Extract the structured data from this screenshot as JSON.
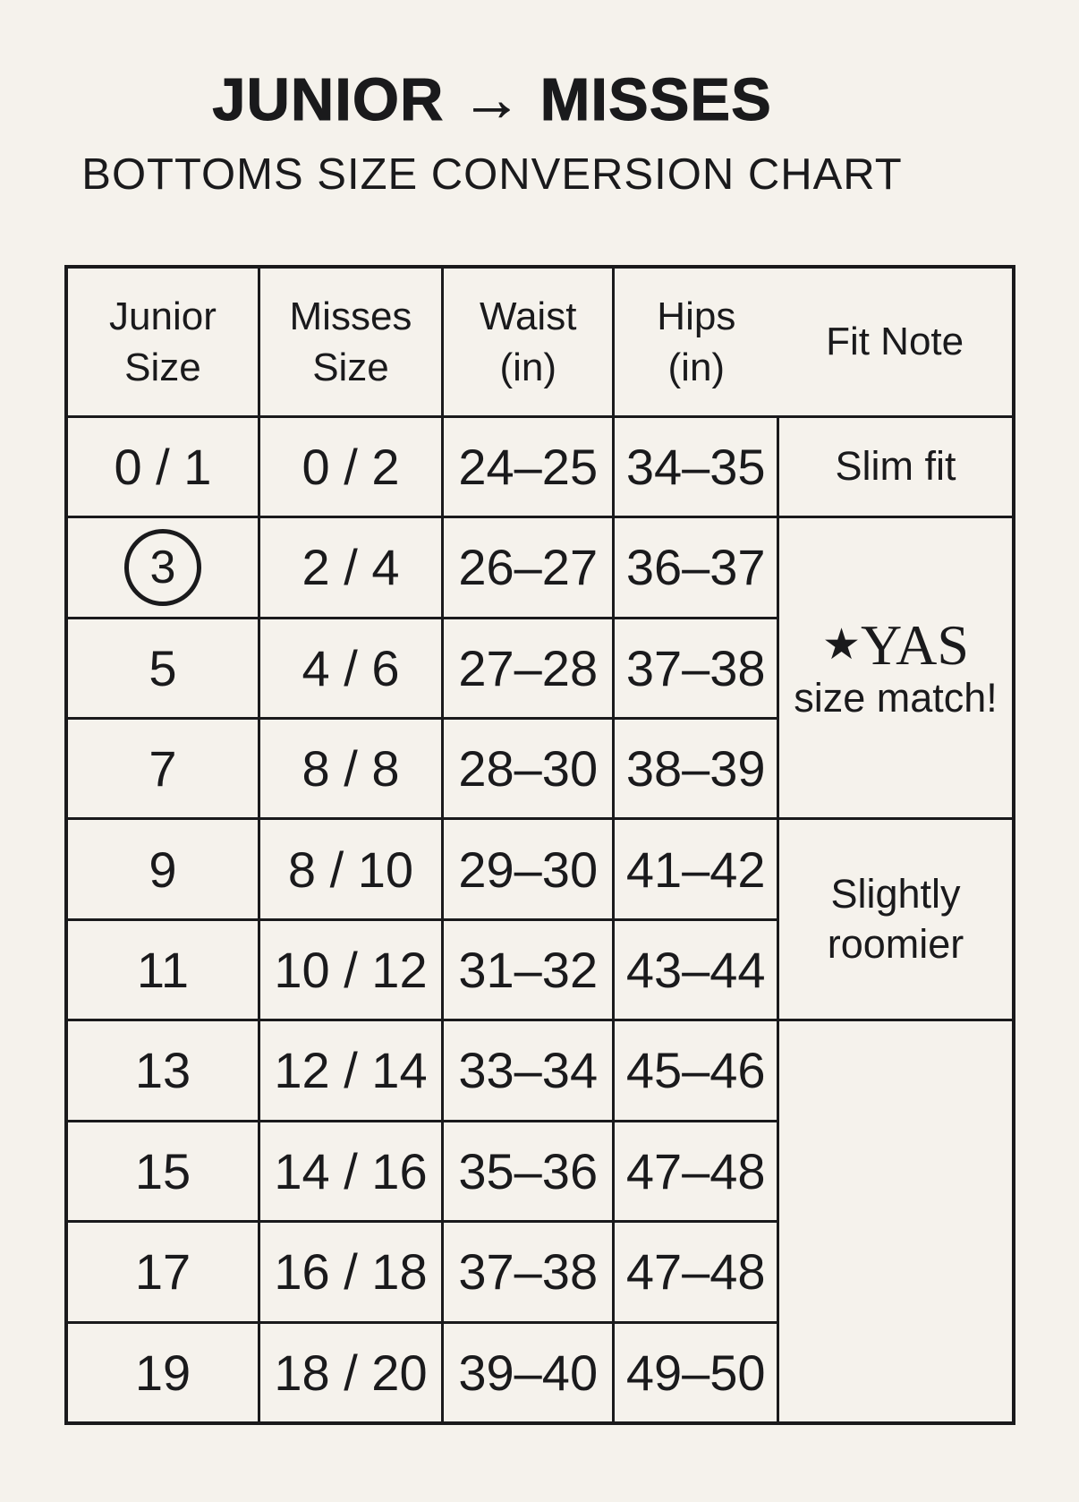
{
  "page": {
    "background_color": "#f5f2ec",
    "line_color": "#1a1a1c"
  },
  "header": {
    "title": "JUNIOR → MISSES",
    "subtitle": "BOTTOMS SIZE CONVERSION CHART"
  },
  "display": {
    "headers": {
      "junior": [
        "Junior",
        "Size"
      ],
      "misses": [
        "Misses",
        "Size"
      ],
      "waist": [
        "Waist",
        "(in)"
      ],
      "hips": [
        "Hips",
        "(in)"
      ],
      "fit": "Fit Note"
    },
    "fit_notes": {
      "slim": "Slim fit",
      "yas_star": "★",
      "yas_brand": "YAS",
      "yas_text": "size match!",
      "roomier": "Slightly roomier",
      "empty": ""
    },
    "annotations": [
      "Junior size 3 is circled"
    ]
  },
  "chart_data": {
    "type": "table",
    "title": "JUNIOR → MISSES",
    "subtitle": "BOTTOMS SIZE CONVERSION CHART",
    "columns": [
      "Junior Size",
      "Misses Size",
      "Waist (in)",
      "Hips (in)",
      "Fit Note"
    ],
    "rows": [
      [
        "0 / 1",
        "0 / 2",
        "24–25",
        "34–35",
        "Slim fit"
      ],
      [
        "3",
        "2 / 4",
        "26–27",
        "36–37",
        "★YAS size match!"
      ],
      [
        "5",
        "4 / 6",
        "27–28",
        "37–38",
        "★YAS size match!"
      ],
      [
        "7",
        "8 / 8",
        "28–30",
        "38–39",
        "★YAS size match!"
      ],
      [
        "9",
        "8 / 10",
        "29–30",
        "41–42",
        "Slightly roomier"
      ],
      [
        "11",
        "10 / 12",
        "31–32",
        "43–44",
        "Slightly roomier"
      ],
      [
        "13",
        "12 / 14",
        "33–34",
        "45–46",
        ""
      ],
      [
        "15",
        "14 / 16",
        "35–36",
        "47–48",
        ""
      ],
      [
        "17",
        "16 / 18",
        "37–38",
        "47–48",
        ""
      ],
      [
        "19",
        "18 / 20",
        "39–40",
        "49–50",
        ""
      ]
    ],
    "merged_fit_note_groups": [
      {
        "label": "Slim fit",
        "junior_sizes": [
          "0 / 1"
        ]
      },
      {
        "label": "★YAS size match!",
        "junior_sizes": [
          "3",
          "5",
          "7"
        ]
      },
      {
        "label": "Slightly roomier",
        "junior_sizes": [
          "9",
          "11"
        ]
      },
      {
        "label": "",
        "junior_sizes": [
          "13",
          "15",
          "17",
          "19"
        ]
      }
    ]
  }
}
